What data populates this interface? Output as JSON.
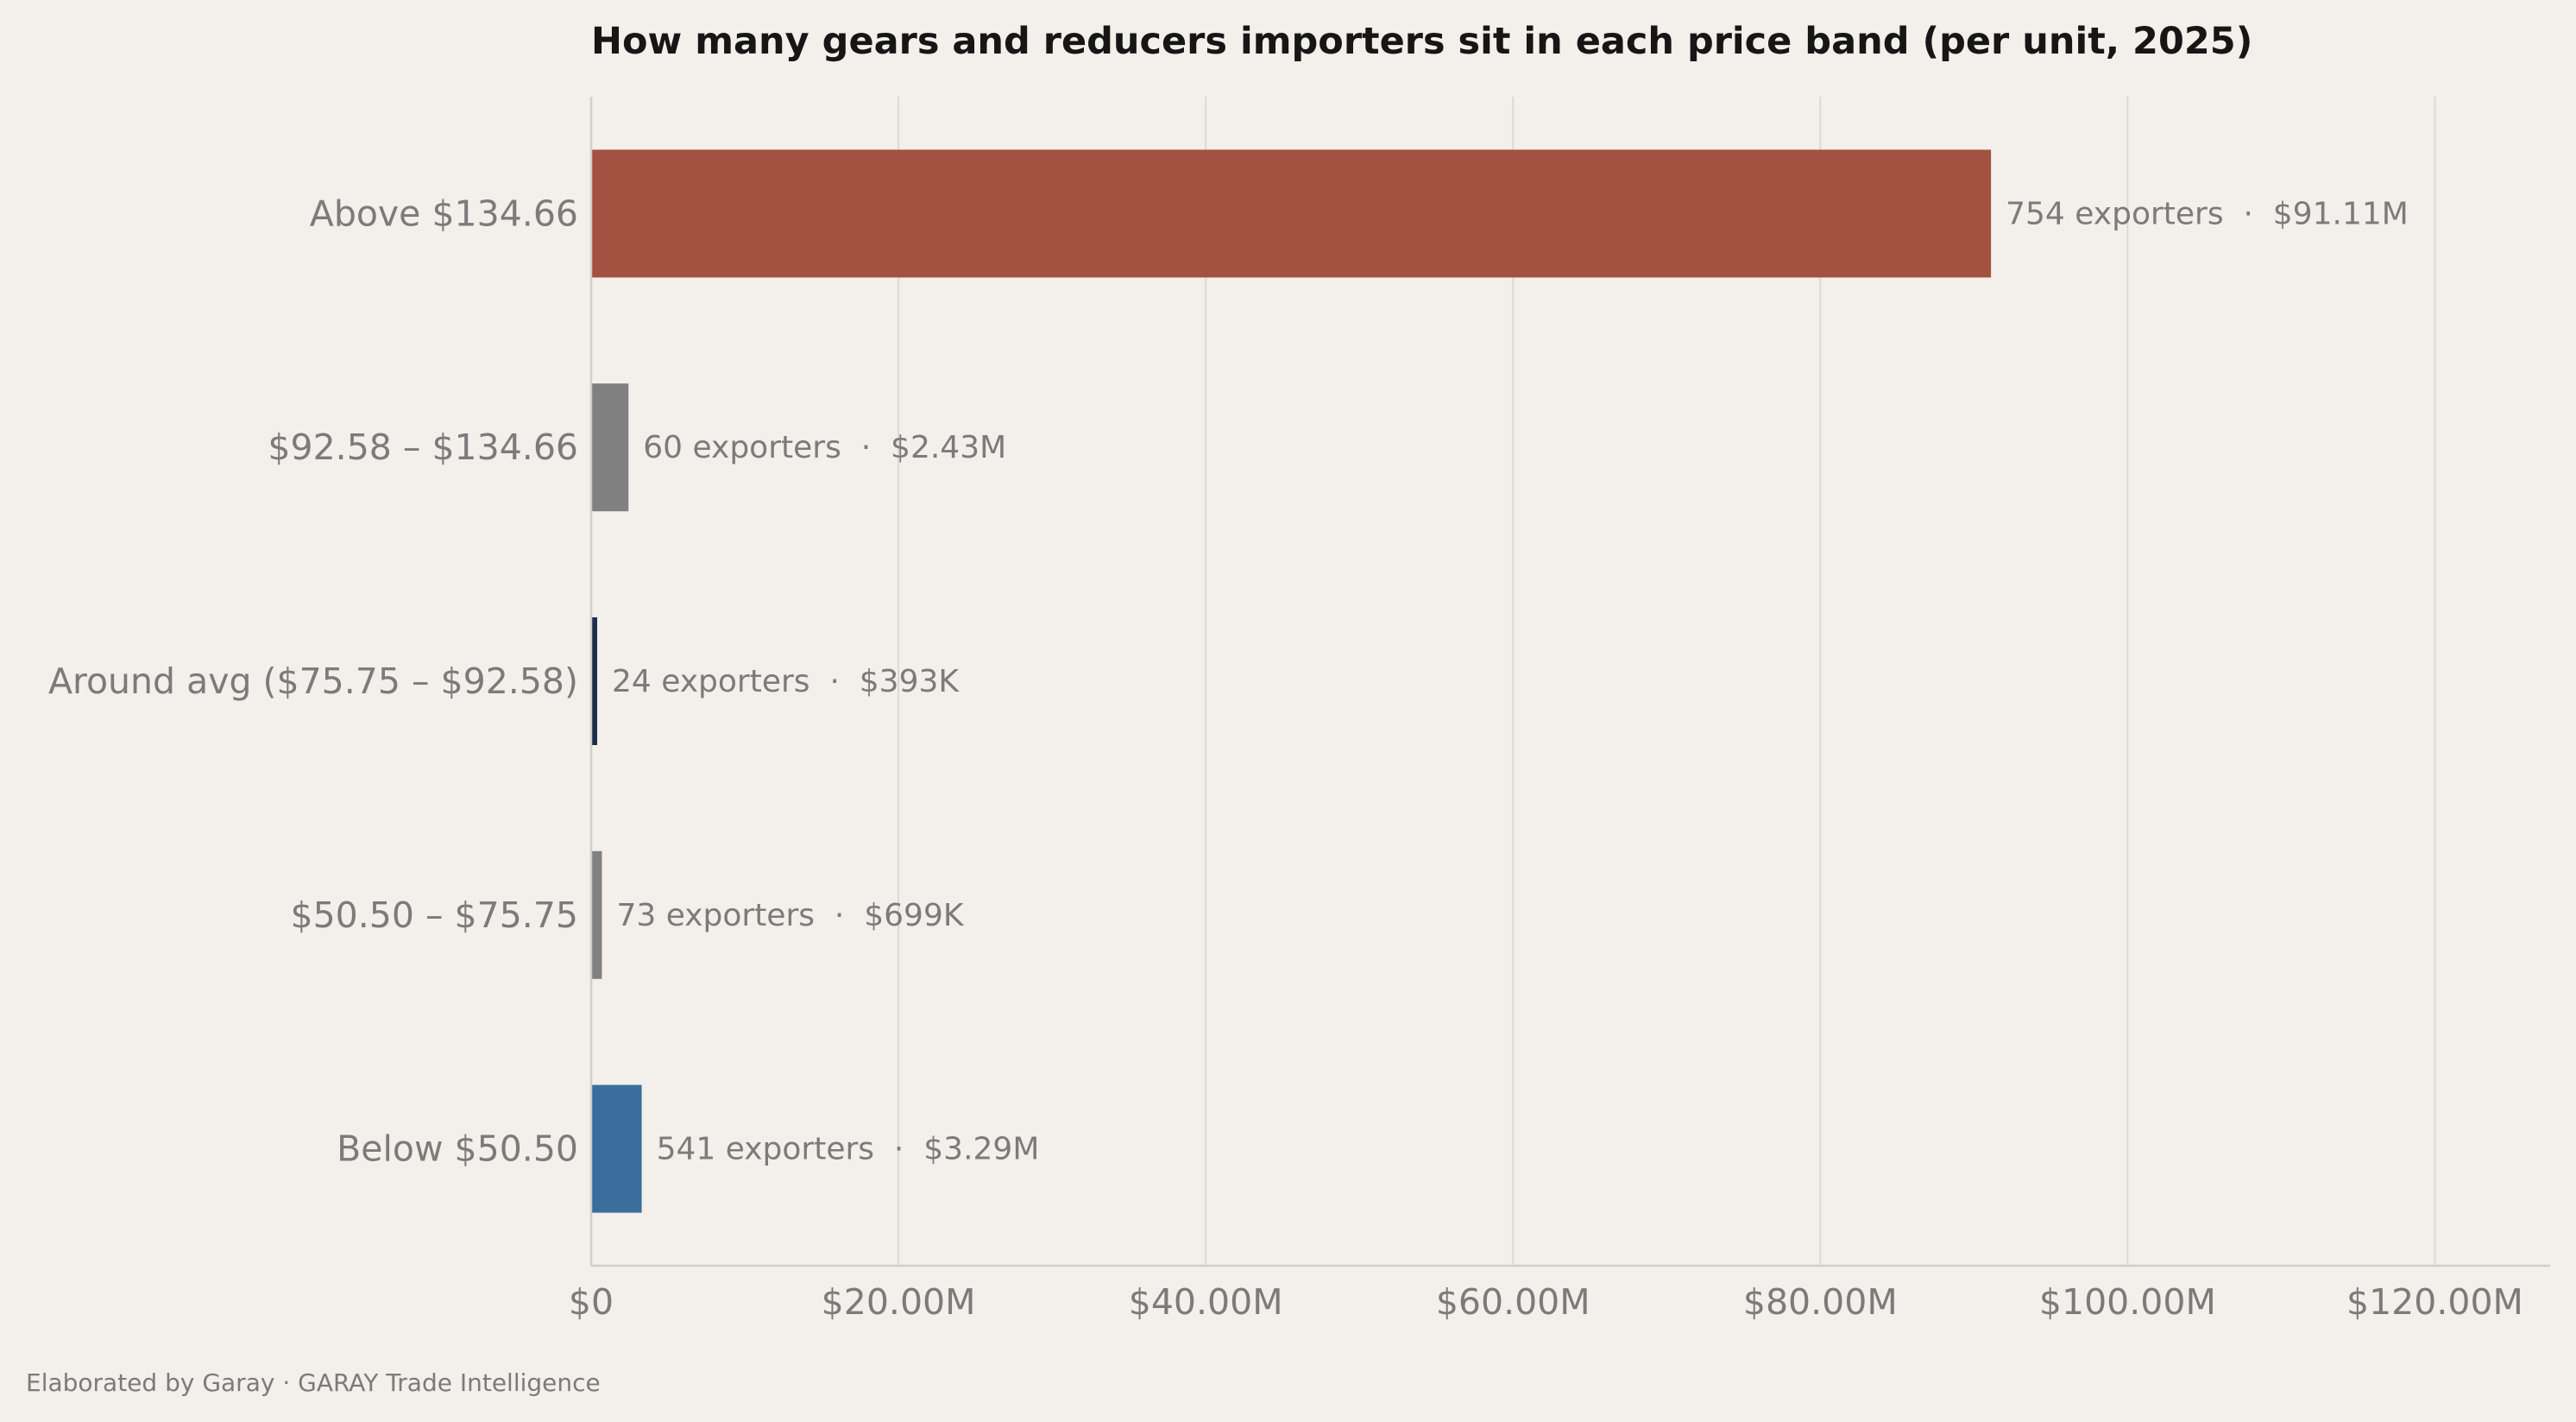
{
  "chart_data": {
    "type": "bar",
    "orientation": "horizontal",
    "title": "How many gears and reducers importers sit in each price band (per unit, 2025)",
    "xlabel": "",
    "ylabel": "",
    "xlim": [
      0,
      127.5
    ],
    "x_unit": "$M",
    "grid": "vertical",
    "legend": "none",
    "x_ticks": [
      {
        "value": 0,
        "label": "$0"
      },
      {
        "value": 20,
        "label": "$20.00M"
      },
      {
        "value": 40,
        "label": "$40.00M"
      },
      {
        "value": 60,
        "label": "$60.00M"
      },
      {
        "value": 80,
        "label": "$80.00M"
      },
      {
        "value": 100,
        "label": "$100.00M"
      },
      {
        "value": 120,
        "label": "$120.00M"
      }
    ],
    "categories": [
      "Above $134.66",
      "$92.58 – $134.66",
      "Around avg ($75.75 – $92.58)",
      "$50.50 – $75.75",
      "Below $50.50"
    ],
    "values": [
      91.11,
      2.43,
      0.393,
      0.699,
      3.29
    ],
    "exporters": [
      754,
      60,
      24,
      73,
      541
    ],
    "data_labels": [
      "754 exporters  ·  $91.11M",
      "60 exporters  ·  $2.43M",
      "24 exporters  ·  $393K",
      "73 exporters  ·  $699K",
      "541 exporters  ·  $3.29M"
    ],
    "colors": [
      "#a35140",
      "#808080",
      "#1c2e4a",
      "#808080",
      "#3a6e9c"
    ]
  },
  "footer": {
    "credit": "Elaborated by Garay  ·  GARAY Trade Intelligence"
  }
}
